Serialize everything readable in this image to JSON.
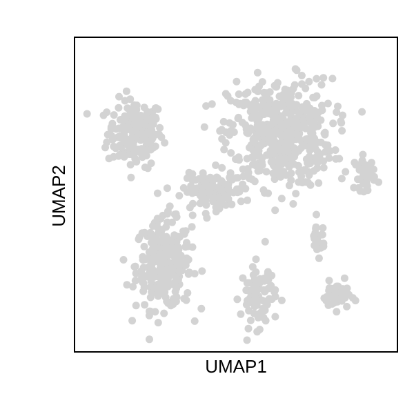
{
  "chart_data": {
    "type": "scatter",
    "xlabel": "UMAP1",
    "ylabel": "UMAP2",
    "xlim": [
      0,
      100
    ],
    "ylim": [
      0,
      100
    ],
    "ticks_shown": false,
    "grid": false,
    "point_color": "#d3d3d3",
    "axis_color": "#000000",
    "clusters": [
      {
        "id": "top-left",
        "center": [
          18,
          70
        ],
        "spread": [
          8,
          10
        ],
        "n": 180
      },
      {
        "id": "bottom-left",
        "center": [
          27,
          27
        ],
        "spread": [
          8,
          13
        ],
        "n": 270
      },
      {
        "id": "upper-center",
        "center": [
          64,
          70
        ],
        "spread": [
          15,
          16
        ],
        "n": 500
      },
      {
        "id": "mid-connector",
        "center": [
          43,
          51
        ],
        "spread": [
          9,
          5
        ],
        "n": 120
      },
      {
        "id": "right",
        "center": [
          91,
          57
        ],
        "spread": [
          3,
          5
        ],
        "n": 40
      },
      {
        "id": "bottom-center",
        "center": [
          57,
          17
        ],
        "spread": [
          5,
          9
        ],
        "n": 80
      },
      {
        "id": "bottom-right",
        "center": [
          82,
          17
        ],
        "spread": [
          4,
          4
        ],
        "n": 45
      },
      {
        "id": "right-small",
        "center": [
          76,
          36
        ],
        "spread": [
          2,
          5
        ],
        "n": 25
      }
    ]
  }
}
